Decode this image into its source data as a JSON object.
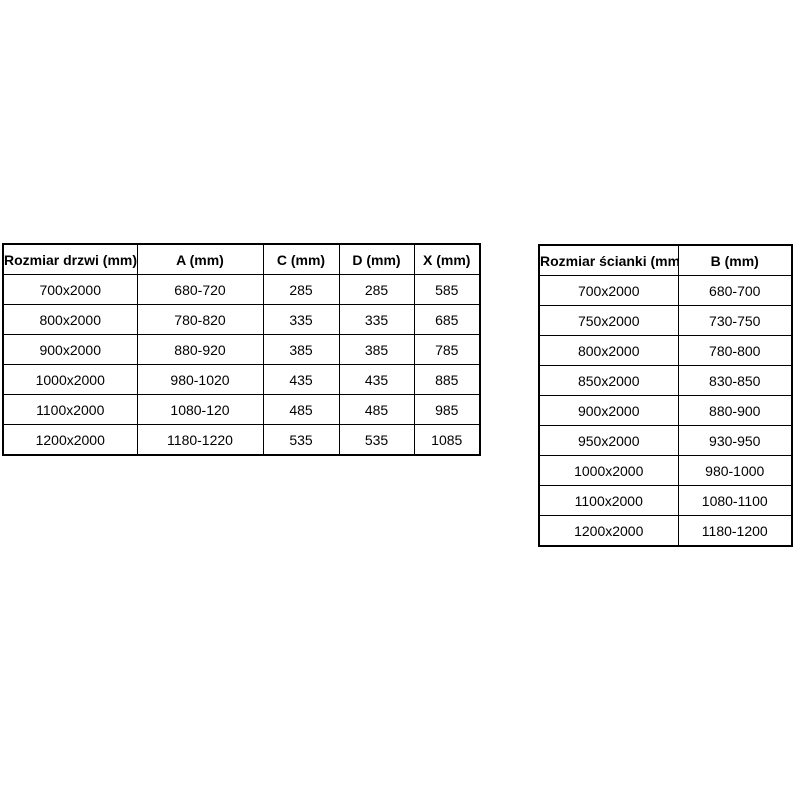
{
  "page": {
    "background_color": "#ffffff",
    "border_color": "#000000",
    "text_color": "#000000"
  },
  "door_table": {
    "headers": [
      "Rozmiar drzwi (mm)",
      "A (mm)",
      "C (mm)",
      "D (mm)",
      "X (mm)"
    ],
    "rows": [
      [
        "700x2000",
        "680-720",
        "285",
        "285",
        "585"
      ],
      [
        "800x2000",
        "780-820",
        "335",
        "335",
        "685"
      ],
      [
        "900x2000",
        "880-920",
        "385",
        "385",
        "785"
      ],
      [
        "1000x2000",
        "980-1020",
        "435",
        "435",
        "885"
      ],
      [
        "1100x2000",
        "1080-120",
        "485",
        "485",
        "985"
      ],
      [
        "1200x2000",
        "1180-1220",
        "535",
        "535",
        "1085"
      ]
    ]
  },
  "wall_table": {
    "headers": [
      "Rozmiar ścianki (mm)",
      "B (mm)"
    ],
    "rows": [
      [
        "700x2000",
        "680-700"
      ],
      [
        "750x2000",
        "730-750"
      ],
      [
        "800x2000",
        "780-800"
      ],
      [
        "850x2000",
        "830-850"
      ],
      [
        "900x2000",
        "880-900"
      ],
      [
        "950x2000",
        "930-950"
      ],
      [
        "1000x2000",
        "980-1000"
      ],
      [
        "1100x2000",
        "1080-1100"
      ],
      [
        "1200x2000",
        "1180-1200"
      ]
    ]
  }
}
